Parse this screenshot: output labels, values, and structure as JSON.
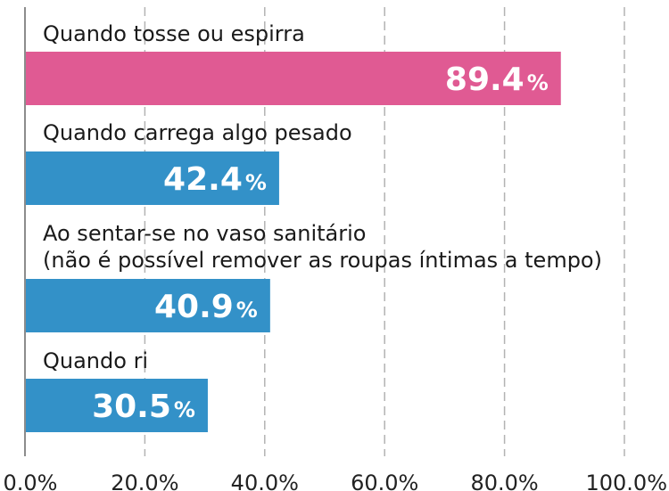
{
  "chart_data": {
    "type": "bar",
    "orientation": "horizontal",
    "categories": [
      [
        "Quando tosse ou espirra"
      ],
      [
        "Quando carrega algo pesado"
      ],
      [
        "Ao sentar-se no vaso sanitário",
        "(não é possível remover as roupas íntimas a tempo)"
      ],
      [
        "Quando ri"
      ]
    ],
    "values": [
      89.4,
      42.4,
      40.9,
      30.5
    ],
    "value_labels": [
      "89.4",
      "42.4",
      "40.9",
      "30.5"
    ],
    "value_unit": "%",
    "bar_colors": [
      "#e05a93",
      "#3391c8",
      "#3391c8",
      "#3391c8"
    ],
    "xlim": [
      0,
      100
    ],
    "x_ticks": [
      "0.0%",
      "20.0%",
      "40.0%",
      "60.0%",
      "80.0%",
      "100.0%"
    ],
    "grid": true,
    "title": "",
    "xlabel": "",
    "ylabel": ""
  }
}
